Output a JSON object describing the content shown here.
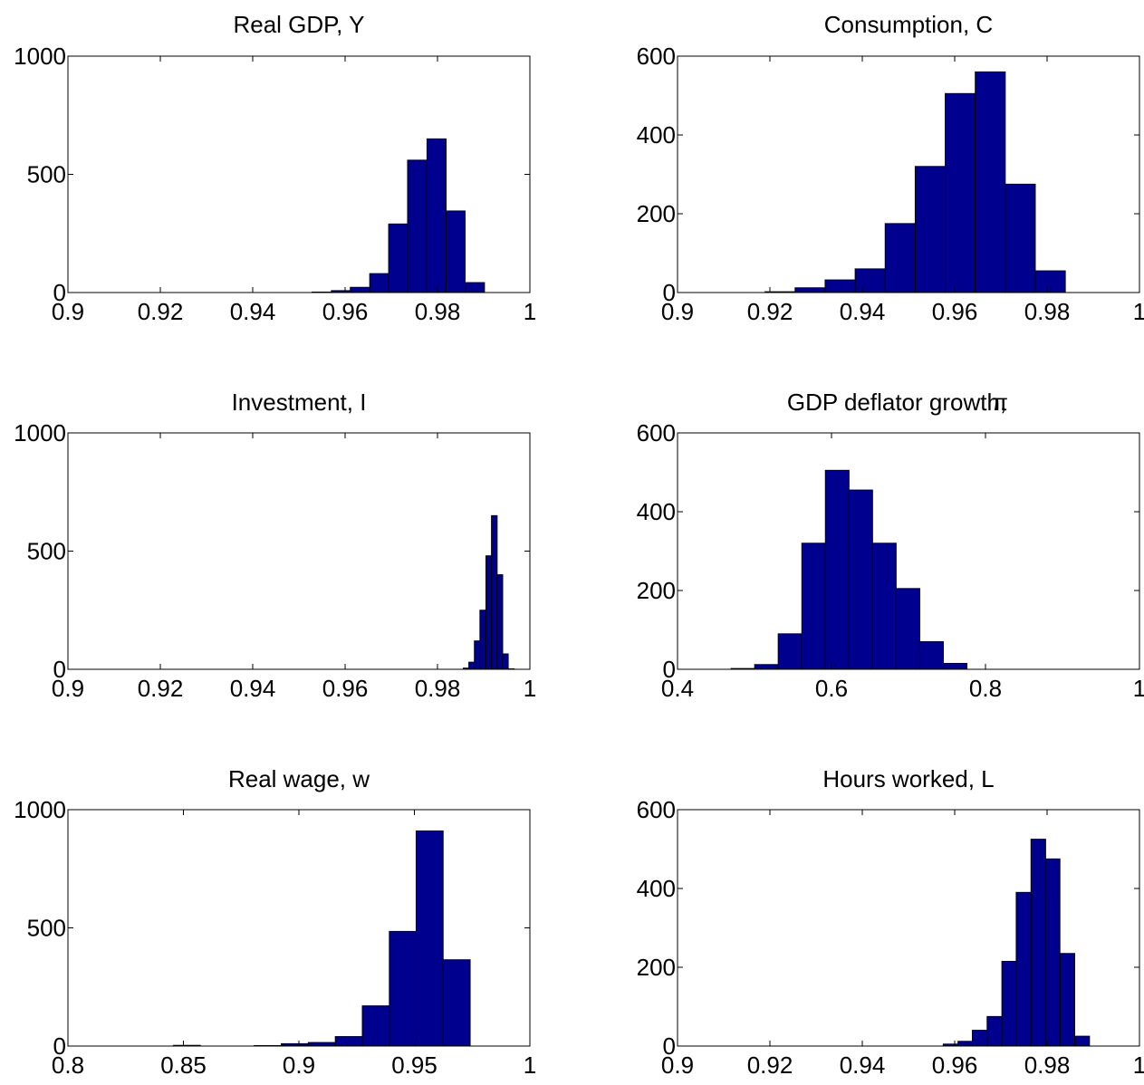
{
  "figure_colors": {
    "bar_fill": "#00008f",
    "bar_edge": "#000000",
    "axes": "#000000",
    "background": "#ffffff"
  },
  "chart_data": [
    {
      "type": "bar",
      "title": "Real GDP, Y",
      "xlim": [
        0.9,
        1
      ],
      "ylim": [
        0,
        1000
      ],
      "xticks": [
        0.9,
        0.92,
        0.94,
        0.96,
        0.98,
        1
      ],
      "xtick_labels": [
        "0.9",
        "0.92",
        "0.94",
        "0.96",
        "0.98",
        "1"
      ],
      "yticks": [
        0,
        500,
        1000
      ],
      "ytick_labels": [
        "0",
        "500",
        "1000"
      ],
      "bin_width": 0.00414,
      "bin_centers": [
        0.9549,
        0.9591,
        0.9632,
        0.9674,
        0.9715,
        0.9756,
        0.9798,
        0.9839,
        0.9881
      ],
      "values": [
        2,
        8,
        22,
        80,
        290,
        560,
        650,
        345,
        42
      ]
    },
    {
      "type": "bar",
      "title": "Consumption, C",
      "xlim": [
        0.9,
        1
      ],
      "ylim": [
        0,
        600
      ],
      "xticks": [
        0.9,
        0.92,
        0.94,
        0.96,
        0.98,
        1
      ],
      "xtick_labels": [
        "0.9",
        "0.92",
        "0.94",
        "0.96",
        "0.98",
        "1"
      ],
      "yticks": [
        0,
        200,
        400,
        600
      ],
      "ytick_labels": [
        "0",
        "200",
        "400",
        "600"
      ],
      "bin_width": 0.00649,
      "bin_centers": [
        0.9222,
        0.9287,
        0.9352,
        0.9417,
        0.9482,
        0.9547,
        0.9612,
        0.9677,
        0.9742,
        0.9807
      ],
      "values": [
        2,
        12,
        32,
        60,
        175,
        320,
        505,
        560,
        275,
        55
      ]
    },
    {
      "type": "bar",
      "title": "Investment, I",
      "xlim": [
        0.9,
        1
      ],
      "ylim": [
        0,
        1000
      ],
      "xticks": [
        0.9,
        0.92,
        0.94,
        0.96,
        0.98,
        1
      ],
      "xtick_labels": [
        "0.9",
        "0.92",
        "0.94",
        "0.96",
        "0.98",
        "1"
      ],
      "yticks": [
        0,
        500,
        1000
      ],
      "ytick_labels": [
        "0",
        "500",
        "1000"
      ],
      "bin_width": 0.00122,
      "bin_centers": [
        0.9862,
        0.9874,
        0.9886,
        0.9898,
        0.9911,
        0.9923,
        0.9935,
        0.9947,
        0.996
      ],
      "values": [
        5,
        30,
        120,
        250,
        480,
        650,
        400,
        65,
        2
      ]
    },
    {
      "type": "bar",
      "title": "GDP deflator growth, π",
      "title_lead": "GDP deflator growth,",
      "title_symbol": "π",
      "xlim": [
        0.4,
        1
      ],
      "ylim": [
        0,
        600
      ],
      "xticks": [
        0.4,
        0.6,
        0.8,
        1
      ],
      "xtick_labels": [
        "0.4",
        "0.6",
        "0.8",
        "1"
      ],
      "yticks": [
        0,
        200,
        400,
        600
      ],
      "ytick_labels": [
        "0",
        "200",
        "400",
        "600"
      ],
      "bin_width": 0.03063,
      "bin_centers": [
        0.4849,
        0.5155,
        0.5461,
        0.5768,
        0.6074,
        0.638,
        0.6686,
        0.6993,
        0.7299,
        0.7605,
        0.7912,
        0.8218
      ],
      "values": [
        2,
        12,
        90,
        320,
        505,
        455,
        320,
        205,
        70,
        15,
        0,
        0
      ]
    },
    {
      "type": "bar",
      "title": "Real wage, w",
      "xlim": [
        0.8,
        1
      ],
      "ylim": [
        0,
        1000
      ],
      "xticks": [
        0.8,
        0.85,
        0.9,
        0.95,
        1
      ],
      "xtick_labels": [
        "0.8",
        "0.85",
        "0.9",
        "0.95",
        "1"
      ],
      "yticks": [
        0,
        500,
        1000
      ],
      "ytick_labels": [
        "0",
        "500",
        "1000"
      ],
      "bin_width": 0.01168,
      "bin_centers": [
        0.8515,
        0.8632,
        0.8749,
        0.8865,
        0.8982,
        0.9099,
        0.9216,
        0.9333,
        0.945,
        0.9566,
        0.9683,
        0.98
      ],
      "values": [
        3,
        0,
        0,
        2,
        10,
        15,
        40,
        170,
        485,
        910,
        365,
        0
      ]
    },
    {
      "type": "bar",
      "title": "Hours worked, L",
      "xlim": [
        0.9,
        1
      ],
      "ylim": [
        0,
        600
      ],
      "xticks": [
        0.9,
        0.92,
        0.94,
        0.96,
        0.98,
        1
      ],
      "xtick_labels": [
        "0.9",
        "0.92",
        "0.94",
        "0.96",
        "0.98",
        "1"
      ],
      "yticks": [
        0,
        200,
        400,
        600
      ],
      "ytick_labels": [
        "0",
        "200",
        "400",
        "600"
      ],
      "bin_width": 0.00316,
      "bin_centers": [
        0.9591,
        0.9623,
        0.9654,
        0.9686,
        0.9718,
        0.9749,
        0.9781,
        0.9812,
        0.9844,
        0.9876
      ],
      "values": [
        5,
        12,
        40,
        75,
        215,
        390,
        525,
        475,
        235,
        25
      ]
    }
  ]
}
